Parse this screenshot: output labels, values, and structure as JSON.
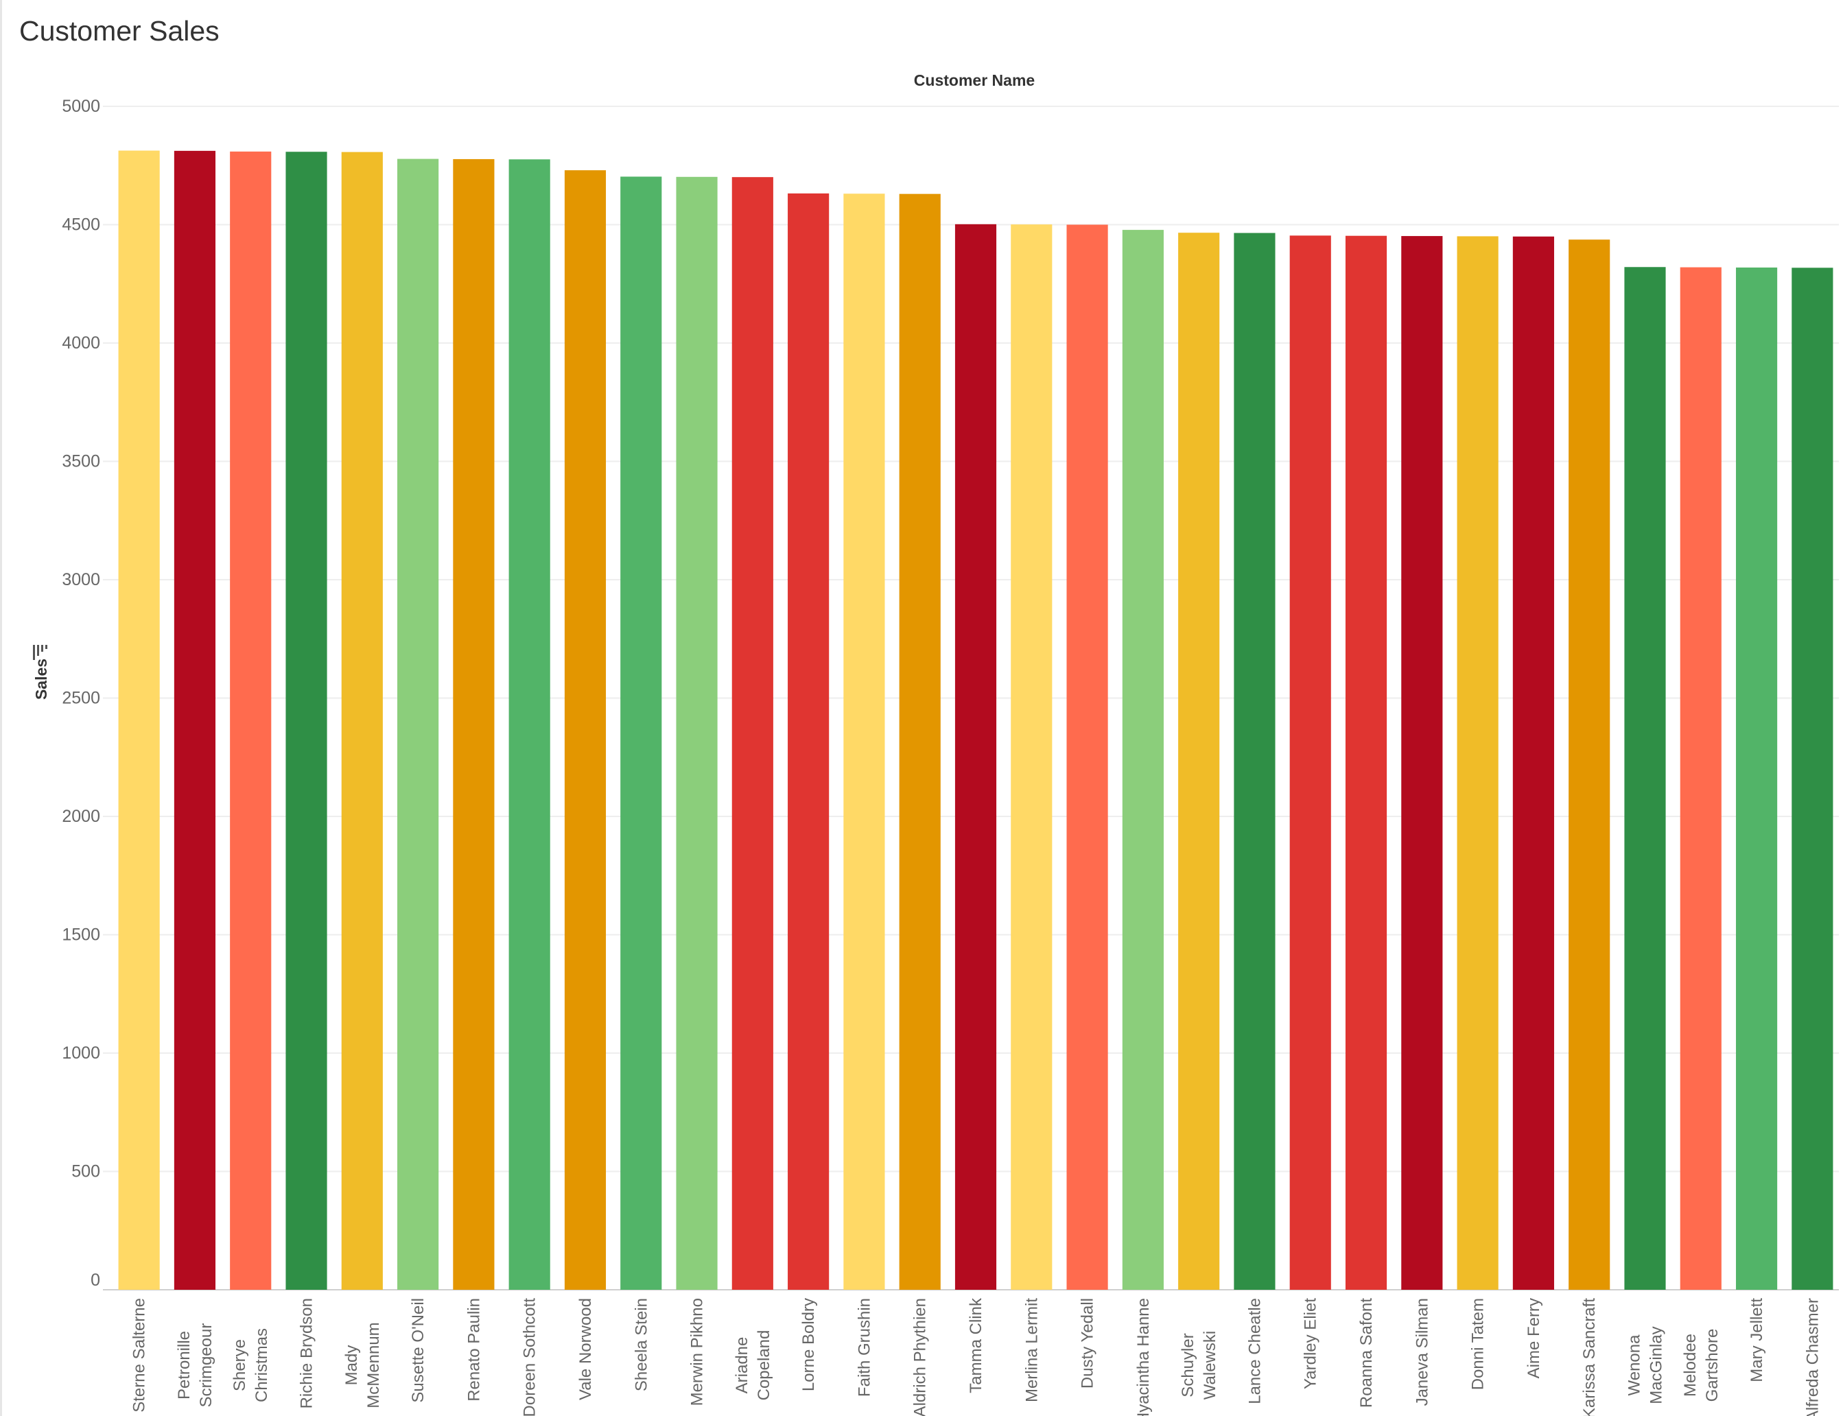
{
  "page": {
    "title": "Customer Sales"
  },
  "chart_data": {
    "type": "bar",
    "title": "Customer Sales",
    "xlabel": "Customer Name",
    "ylabel": "Sales",
    "ylim": [
      0,
      5000
    ],
    "yticks": [
      0,
      500,
      1000,
      1500,
      2000,
      2500,
      3000,
      3500,
      4000,
      4500,
      5000
    ],
    "grid": true,
    "sort_icon": "sort-descending-icon",
    "categories": [
      "Sterne Salterne",
      "Petronille Scrimgeour",
      "Sherye Christmas",
      "Richie Brydson",
      "Mady McMennum",
      "Susette O'Neil",
      "Renato Paulin",
      "Doreen Sothcott",
      "Vale Norwood",
      "Sheela Stein",
      "Merwin Pikhno",
      "Ariadne Copeland",
      "Lorne Boldry",
      "Faith Grushin",
      "Aldrich Phythien",
      "Tamma Clink",
      "Merlina Lermit",
      "Dusty Yedall",
      "Hyacintha Hanne",
      "Schuyler Walewski",
      "Lance Cheatle",
      "Yardley Eliet",
      "Roanna Safont",
      "Janeva Silman",
      "Donni Tatem",
      "Aime Ferry",
      "Karissa Sancraft",
      "Wenona MacGinlay",
      "Melodee Gartshore",
      "Mary Jellett",
      "Alfreda Chasmer"
    ],
    "label_lines": [
      [
        "Sterne Salterne"
      ],
      [
        "Petronille",
        "Scrimgeour"
      ],
      [
        "Sherye",
        "Christmas"
      ],
      [
        "Richie Brydson"
      ],
      [
        "Mady",
        "McMennum"
      ],
      [
        "Susette O'Neil"
      ],
      [
        "Renato Paulin"
      ],
      [
        "Doreen Sothcott"
      ],
      [
        "Vale Norwood"
      ],
      [
        "Sheela Stein"
      ],
      [
        "Merwin Pikhno"
      ],
      [
        "Ariadne",
        "Copeland"
      ],
      [
        "Lorne Boldry"
      ],
      [
        "Faith Grushin"
      ],
      [
        "Aldrich Phythien"
      ],
      [
        "Tamma Clink"
      ],
      [
        "Merlina Lermit"
      ],
      [
        "Dusty Yedall"
      ],
      [
        "Hyacintha Hanne"
      ],
      [
        "Schuyler",
        "Walewski"
      ],
      [
        "Lance Cheatle"
      ],
      [
        "Yardley Eliet"
      ],
      [
        "Roanna Safont"
      ],
      [
        "Janeva Silman"
      ],
      [
        "Donni Tatem"
      ],
      [
        "Aime Ferry"
      ],
      [
        "Karissa Sancraft"
      ],
      [
        "Wenona",
        "MacGinlay"
      ],
      [
        "Melodee",
        "Gartshore"
      ],
      [
        "Mary Jellett"
      ],
      [
        "Alfreda Chasmer"
      ]
    ],
    "values": [
      4813,
      4812,
      4809,
      4808,
      4807,
      4778,
      4777,
      4776,
      4730,
      4703,
      4702,
      4701,
      4632,
      4631,
      4630,
      4502,
      4501,
      4500,
      4478,
      4466,
      4465,
      4454,
      4453,
      4452,
      4451,
      4450,
      4437,
      4321,
      4320,
      4319,
      4318
    ],
    "colors": [
      "#FFD966",
      "#B30B1F",
      "#FF6B4E",
      "#2F8F46",
      "#F0BC28",
      "#8BCE7B",
      "#E39600",
      "#52B468",
      "#E39600",
      "#52B468",
      "#8BCE7B",
      "#E03531",
      "#E03531",
      "#FFD966",
      "#E39600",
      "#B30B1F",
      "#FFD966",
      "#FF6B4E",
      "#8BCE7B",
      "#F0BC28",
      "#2F8F46",
      "#E03531",
      "#E03531",
      "#B30B1F",
      "#F0BC28",
      "#B30B1F",
      "#E39600",
      "#2F8F46",
      "#FF6B4E",
      "#52B468",
      "#2F8F46"
    ]
  }
}
